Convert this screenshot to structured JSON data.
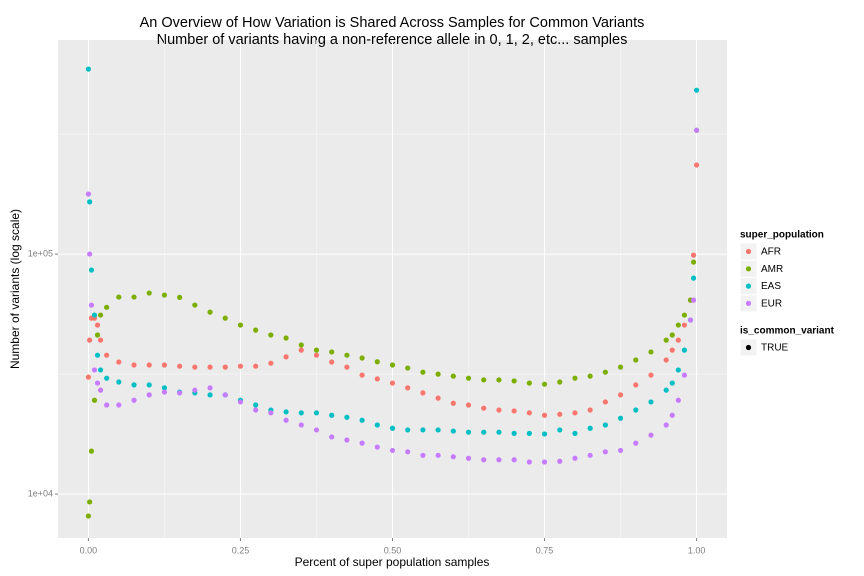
{
  "chart_data": {
    "type": "scatter",
    "title": "An Overview of How Variation is Shared Across Samples for Common Variants",
    "subtitle": "Number of variants having a non-reference allele in 0, 1, 2, etc... samples",
    "x_label": "Percent of super population samples",
    "y_label": "Number of variants (log scale)",
    "log_y": true,
    "grid": true,
    "legend_position": "right",
    "legend_title": "super_population",
    "shape_legend": {
      "title": "is_common_variant",
      "labels": [
        "TRUE"
      ],
      "color": "#000000"
    },
    "xlim": [
      -0.05,
      1.05
    ],
    "xticks": [
      {
        "value": 0,
        "label": "0.00"
      },
      {
        "value": 0.25,
        "label": "0.25"
      },
      {
        "value": 0.5,
        "label": "0.50"
      },
      {
        "value": 0.75,
        "label": "0.75"
      },
      {
        "value": 1,
        "label": "1.00"
      }
    ],
    "minor_xticks": [
      0.125,
      0.375,
      0.625,
      0.875
    ],
    "ylim": [
      6560,
      780000
    ],
    "yticks": [
      {
        "value": 10000,
        "label": "1e+04"
      },
      {
        "value": 100000,
        "label": "1e+05"
      }
    ],
    "minor_yticks": [
      31622.8,
      316227.8
    ],
    "x": [
      0,
      0.002,
      0.005,
      0.01,
      0.015,
      0.02,
      0.03,
      0.05,
      0.075,
      0.1,
      0.125,
      0.15,
      0.175,
      0.2,
      0.225,
      0.25,
      0.275,
      0.3,
      0.325,
      0.35,
      0.375,
      0.4,
      0.425,
      0.45,
      0.475,
      0.5,
      0.525,
      0.55,
      0.575,
      0.6,
      0.625,
      0.65,
      0.675,
      0.7,
      0.725,
      0.75,
      0.775,
      0.8,
      0.825,
      0.85,
      0.875,
      0.9,
      0.925,
      0.95,
      0.96,
      0.97,
      0.98,
      0.99,
      0.995,
      1.0
    ],
    "series": [
      {
        "name": "AFR",
        "color": "#F8766D",
        "values": [
          30700,
          43800,
          54100,
          54100,
          50600,
          43800,
          37900,
          35500,
          34500,
          34500,
          34500,
          34100,
          33800,
          33800,
          33800,
          34100,
          34100,
          35100,
          37300,
          39800,
          37900,
          35500,
          33800,
          31300,
          30200,
          29000,
          27700,
          26400,
          25100,
          23900,
          23500,
          22800,
          22400,
          22200,
          21800,
          21300,
          21500,
          21800,
          22400,
          24200,
          25900,
          28500,
          31300,
          36200,
          39800,
          43800,
          50600,
          64300,
          99000,
          235000
        ]
      },
      {
        "name": "AMR",
        "color": "#7CAE00",
        "values": [
          8100,
          9270,
          15100,
          24600,
          46000,
          55700,
          60000,
          66200,
          66200,
          68800,
          67500,
          66000,
          61300,
          57300,
          54100,
          50600,
          48200,
          46000,
          44700,
          41800,
          39800,
          39100,
          37900,
          36900,
          35600,
          34500,
          33500,
          32200,
          31600,
          31000,
          30400,
          29900,
          29900,
          29600,
          29000,
          28700,
          29300,
          30400,
          31000,
          32200,
          33800,
          36200,
          39100,
          43800,
          46000,
          50600,
          55700,
          64300,
          92600,
          328000
        ]
      },
      {
        "name": "EAS",
        "color": "#00BFC4",
        "values": [
          590000,
          165000,
          85800,
          55700,
          37900,
          32900,
          30400,
          29300,
          28500,
          28500,
          27700,
          26600,
          26400,
          25900,
          25900,
          24600,
          23500,
          22400,
          22000,
          21800,
          21800,
          21300,
          20900,
          20300,
          19400,
          18800,
          18500,
          18500,
          18500,
          18300,
          18100,
          18100,
          18100,
          17900,
          17900,
          17800,
          18500,
          17900,
          18800,
          19400,
          20700,
          22400,
          24200,
          27100,
          29000,
          32900,
          39800,
          53100,
          79400,
          482000
        ]
      },
      {
        "name": "EUR",
        "color": "#C77CFF",
        "values": [
          178000,
          100000,
          61300,
          32900,
          29000,
          27100,
          23500,
          23500,
          24600,
          25900,
          26600,
          26400,
          27100,
          27700,
          25900,
          24200,
          22400,
          21800,
          20300,
          19400,
          18500,
          17300,
          16800,
          16300,
          15700,
          15200,
          15000,
          14500,
          14500,
          14300,
          14100,
          13900,
          13900,
          13900,
          13600,
          13600,
          13700,
          14100,
          14500,
          15000,
          15200,
          16300,
          17600,
          19400,
          21300,
          24600,
          31300,
          53100,
          64300,
          328000
        ]
      }
    ]
  }
}
